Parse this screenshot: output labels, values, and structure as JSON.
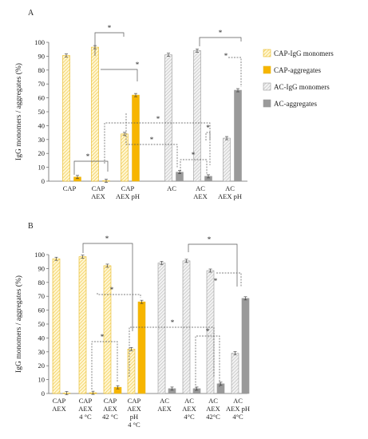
{
  "colors": {
    "cap_mono": "#f5cf55",
    "cap_agg": "#f7b500",
    "ac_mono": "#c9c9c9",
    "ac_agg": "#9a9a9a",
    "axis": "#666666",
    "sig": "#555555"
  },
  "legend": {
    "placement": "right",
    "items": [
      "CAP-IgG monomers",
      "CAP-aggregates",
      "AC-IgG monomers",
      "AC-aggregates"
    ]
  },
  "chart_data": [
    {
      "type": "bar",
      "panel": "A",
      "ylabel": "IgG monomers / aggregates (%)",
      "ylim": [
        0,
        100
      ],
      "yticks": [
        0,
        10,
        20,
        30,
        40,
        50,
        60,
        70,
        80,
        90,
        100
      ],
      "categories": [
        [
          "CAP"
        ],
        [
          "CAP",
          "AEX"
        ],
        [
          "CAP",
          "AEX pH"
        ],
        [
          "AC"
        ],
        [
          "AC",
          "AEX"
        ],
        [
          "AC",
          "AEX pH"
        ]
      ],
      "series": [
        {
          "name": "CAP-IgG monomers",
          "group": "CAP",
          "values": [
            90.5,
            96.5,
            34.0,
            null,
            null,
            null
          ]
        },
        {
          "name": "CAP-aggregates",
          "group": "CAP",
          "values": [
            3.0,
            0.3,
            62.0,
            null,
            null,
            null
          ]
        },
        {
          "name": "AC-IgG monomers",
          "group": "AC",
          "values": [
            null,
            null,
            null,
            91.0,
            94.0,
            31.0
          ]
        },
        {
          "name": "AC-aggregates",
          "group": "AC",
          "values": [
            null,
            null,
            null,
            6.5,
            3.5,
            65.5
          ]
        }
      ],
      "significance": "*"
    },
    {
      "type": "bar",
      "panel": "B",
      "ylabel": "IgG monomers / aggregates (%)",
      "ylim": [
        0,
        100
      ],
      "yticks": [
        0,
        10,
        20,
        30,
        40,
        50,
        60,
        70,
        80,
        90,
        100
      ],
      "categories": [
        [
          "CAP",
          "AEX"
        ],
        [
          "CAP",
          "AEX",
          "4 °C"
        ],
        [
          "CAP",
          "AEX",
          "42 °C"
        ],
        [
          "CAP",
          "AEX",
          "pH",
          "4 °C"
        ],
        [
          "AC",
          "AEX"
        ],
        [
          "AC",
          "AEX",
          "4°C"
        ],
        [
          "AC",
          "AEX",
          "42°C"
        ],
        [
          "AC",
          "AEX pH",
          "4°C"
        ]
      ],
      "series": [
        {
          "name": "CAP-IgG monomers",
          "group": "CAP",
          "values": [
            97.0,
            98.5,
            92.0,
            32.0,
            null,
            null,
            null,
            null
          ]
        },
        {
          "name": "CAP-aggregates",
          "group": "CAP",
          "values": [
            0.3,
            0.5,
            4.5,
            66.0,
            null,
            null,
            null,
            null
          ]
        },
        {
          "name": "AC-IgG monomers",
          "group": "AC",
          "values": [
            null,
            null,
            null,
            null,
            94.0,
            95.5,
            88.5,
            29.0
          ]
        },
        {
          "name": "AC-aggregates",
          "group": "AC",
          "values": [
            null,
            null,
            null,
            null,
            3.5,
            3.5,
            7.0,
            68.5
          ]
        }
      ],
      "significance": "*"
    }
  ]
}
